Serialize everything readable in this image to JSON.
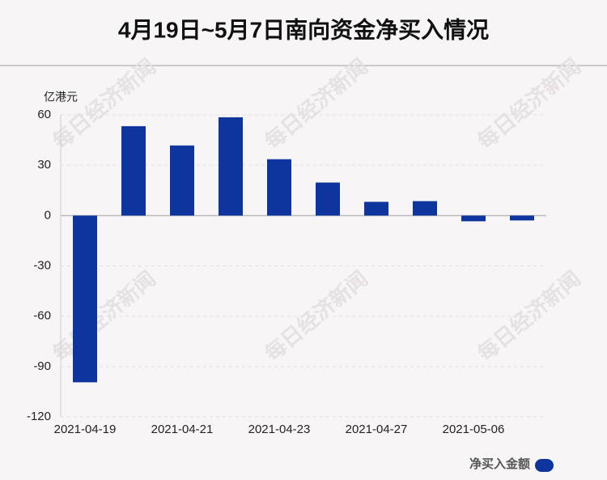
{
  "chart_data": {
    "type": "bar",
    "title": "4月19日~5月7日南向资金净买入情况",
    "y_label": "亿港元",
    "watermark": "每日经济新闻",
    "categories": [
      "2021-04-19",
      null,
      "2021-04-21",
      null,
      "2021-04-23",
      null,
      "2021-04-27",
      null,
      "2021-05-06",
      null
    ],
    "series": [
      {
        "name": "净买入金额",
        "color": "#0e349e",
        "values": [
          -99.4,
          53.3,
          41.8,
          58.6,
          33.6,
          19.7,
          8.2,
          8.6,
          -3.4,
          -2.9
        ]
      }
    ],
    "ylim": [
      -120,
      60
    ],
    "yticks": [
      -120,
      -90,
      -60,
      -30,
      0,
      30,
      60
    ],
    "grid": true,
    "legend": "bottom-right"
  }
}
